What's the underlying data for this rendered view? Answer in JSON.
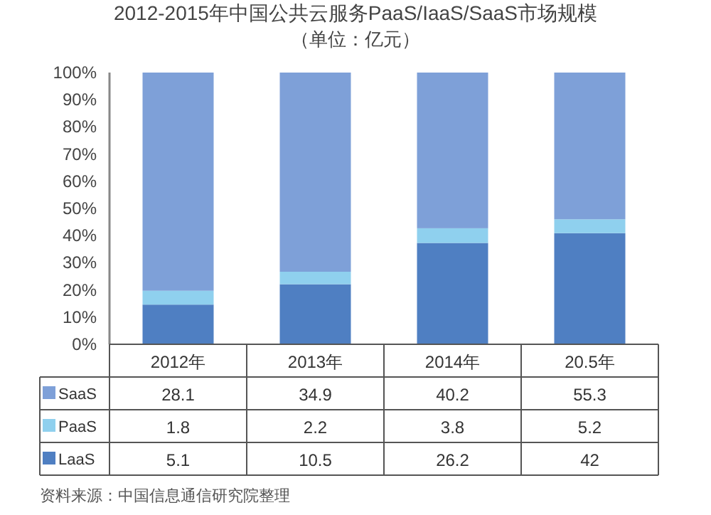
{
  "chart_data": {
    "type": "bar",
    "stacked": true,
    "title": "2012-2015年中国公共云服务PaaS/IaaS/SaaS市场规模",
    "subtitle": "（单位：亿元）",
    "categories": [
      "2012年",
      "2013年",
      "2014年",
      "20.5年"
    ],
    "series": [
      {
        "name": "LaaS",
        "color": "#4f7fc2",
        "values": [
          14.6,
          22.1,
          37.3,
          40.9
        ]
      },
      {
        "name": "PaaS",
        "color": "#8fd0ee",
        "values": [
          5.1,
          4.6,
          5.4,
          5.1
        ]
      },
      {
        "name": "SaaS",
        "color": "#7ea0d8",
        "values": [
          80.3,
          73.3,
          57.3,
          54.0
        ]
      }
    ],
    "ylim": [
      0,
      100
    ],
    "yticks": [
      {
        "value": 0,
        "label": "0%"
      },
      {
        "value": 10,
        "label": "10%"
      },
      {
        "value": 20,
        "label": "20%"
      },
      {
        "value": 30,
        "label": "30%"
      },
      {
        "value": 40,
        "label": "40%"
      },
      {
        "value": 50,
        "label": "50%"
      },
      {
        "value": 60,
        "label": "60%"
      },
      {
        "value": 70,
        "label": "70%"
      },
      {
        "value": 80,
        "label": "80%"
      },
      {
        "value": 90,
        "label": "90%"
      },
      {
        "value": 100,
        "label": "100%"
      }
    ],
    "grid": false,
    "legend": "bottom",
    "annotations": [
      "28.1",
      "34.9",
      "40.2",
      "55.3",
      "1.8",
      "2.2",
      "3.8",
      "5.2",
      "5.1",
      "10.5",
      "26.2",
      "42",
      "资料来源：中国信息通信研究院整理"
    ]
  }
}
